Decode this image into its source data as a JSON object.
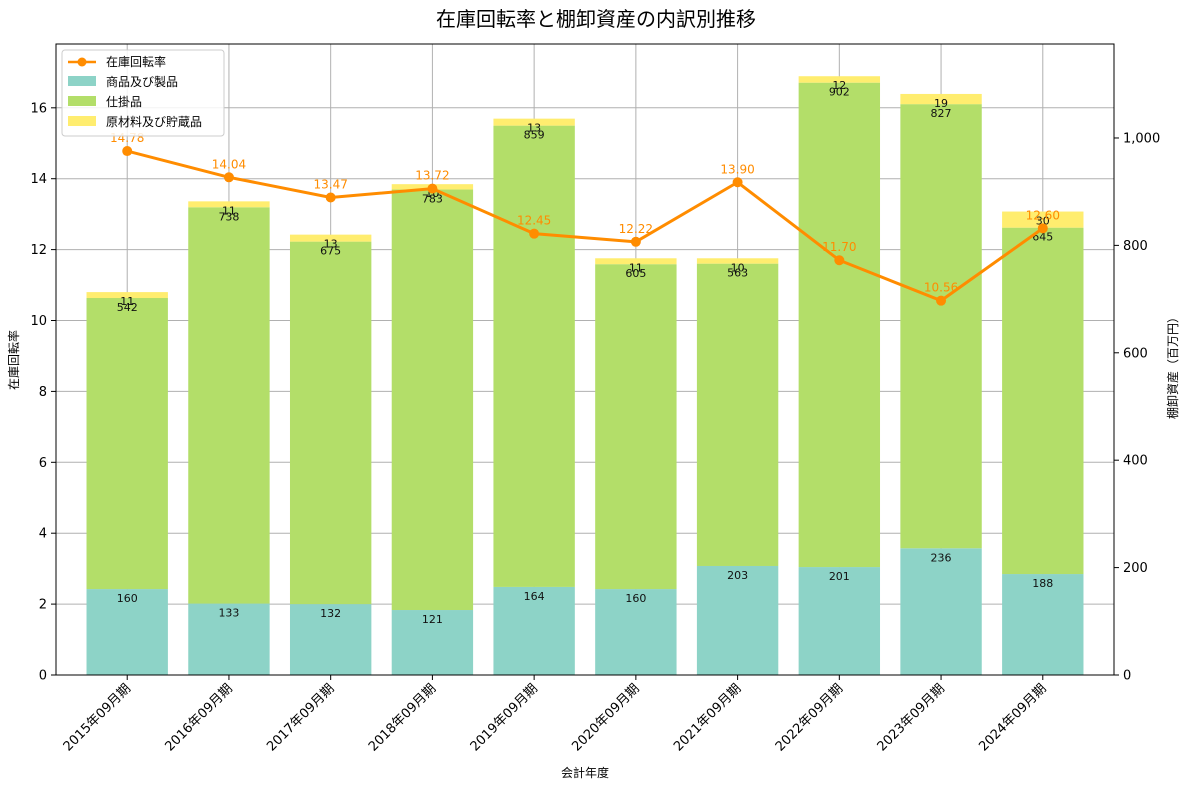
{
  "chart_data": {
    "type": "bar",
    "title": "在庫回転率と棚卸資産の内訳別推移",
    "xlabel": "会計年度",
    "ylabel_left": "在庫回転率",
    "ylabel_right": "棚卸資産（百万円）",
    "categories": [
      "2015年09月期",
      "2016年09月期",
      "2017年09月期",
      "2018年09月期",
      "2019年09月期",
      "2020年09月期",
      "2021年09月期",
      "2022年09月期",
      "2023年09月期",
      "2024年09月期"
    ],
    "stack_series": [
      {
        "name": "商品及び製品",
        "color": "#8dd3c7",
        "values": [
          160,
          133,
          132,
          121,
          164,
          160,
          203,
          201,
          236,
          188
        ]
      },
      {
        "name": "仕掛品",
        "color": "#b3de69",
        "values": [
          542,
          738,
          675,
          783,
          859,
          605,
          563,
          902,
          827,
          645
        ]
      },
      {
        "name": "原材料及び貯蔵品",
        "color": "#ffed6f",
        "values": [
          11,
          11,
          13,
          10,
          13,
          11,
          10,
          12,
          19,
          30
        ]
      }
    ],
    "line_series": {
      "name": "在庫回転率",
      "color": "#ff8c00",
      "values": [
        14.78,
        14.04,
        13.47,
        13.72,
        12.45,
        12.22,
        13.9,
        11.7,
        10.56,
        12.6
      ]
    },
    "left_axis": {
      "min": 0,
      "max": 17.8,
      "ticks": [
        0,
        2,
        4,
        6,
        8,
        10,
        12,
        14,
        16
      ],
      "tick_labels": [
        "0",
        "2",
        "4",
        "6",
        "8",
        "10",
        "12",
        "14",
        "16"
      ]
    },
    "right_axis": {
      "min": 0,
      "max": 1175,
      "ticks": [
        0,
        200,
        400,
        600,
        800,
        1000
      ],
      "tick_labels": [
        "0",
        "200",
        "400",
        "600",
        "800",
        "1,000"
      ]
    },
    "grid": true,
    "legend_position": "top-left"
  }
}
